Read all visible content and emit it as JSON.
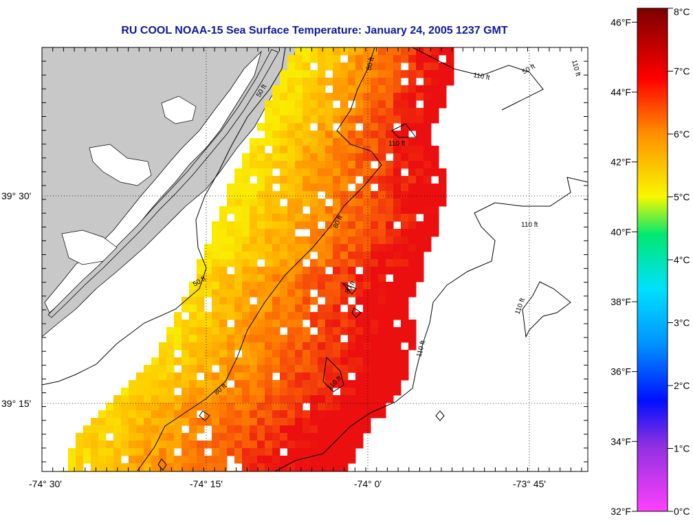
{
  "title": "RU COOL  NOAA-15  Sea Surface Temperature:  January 24, 2005 1237 GMT",
  "map": {
    "lon_ticks": [
      "-74° 30'",
      "-74° 15'",
      "-74° 0'",
      "-73° 45'"
    ],
    "lat_ticks": [
      "39° 30'",
      "39° 15'"
    ],
    "contour_labels": [
      "50 ft",
      "80 ft",
      "110 ft"
    ],
    "colors": {
      "land": "#c8c8c8",
      "contour": "#000000",
      "grid": "#000000"
    }
  },
  "colorbar": {
    "f_labels": [
      "46°F",
      "44°F",
      "42°F",
      "40°F",
      "38°F",
      "36°F",
      "34°F",
      "32°F"
    ],
    "c_labels": [
      "8°C",
      "7°C",
      "6°C",
      "5°C",
      "4°C",
      "3°C",
      "2°C",
      "1°C",
      "0°C"
    ]
  },
  "chart_data": {
    "type": "heatmap",
    "title": "RU COOL  NOAA-15  Sea Surface Temperature:  January 24, 2005 1237 GMT",
    "x_axis": "longitude",
    "y_axis": "latitude",
    "xlim": [
      -74.5,
      -73.67
    ],
    "ylim": [
      39.08,
      39.67
    ],
    "value_range_c": [
      0,
      8
    ],
    "value_range_f": [
      32,
      46.4
    ],
    "observed_sst_c_range": [
      5.0,
      7.5
    ]
  }
}
